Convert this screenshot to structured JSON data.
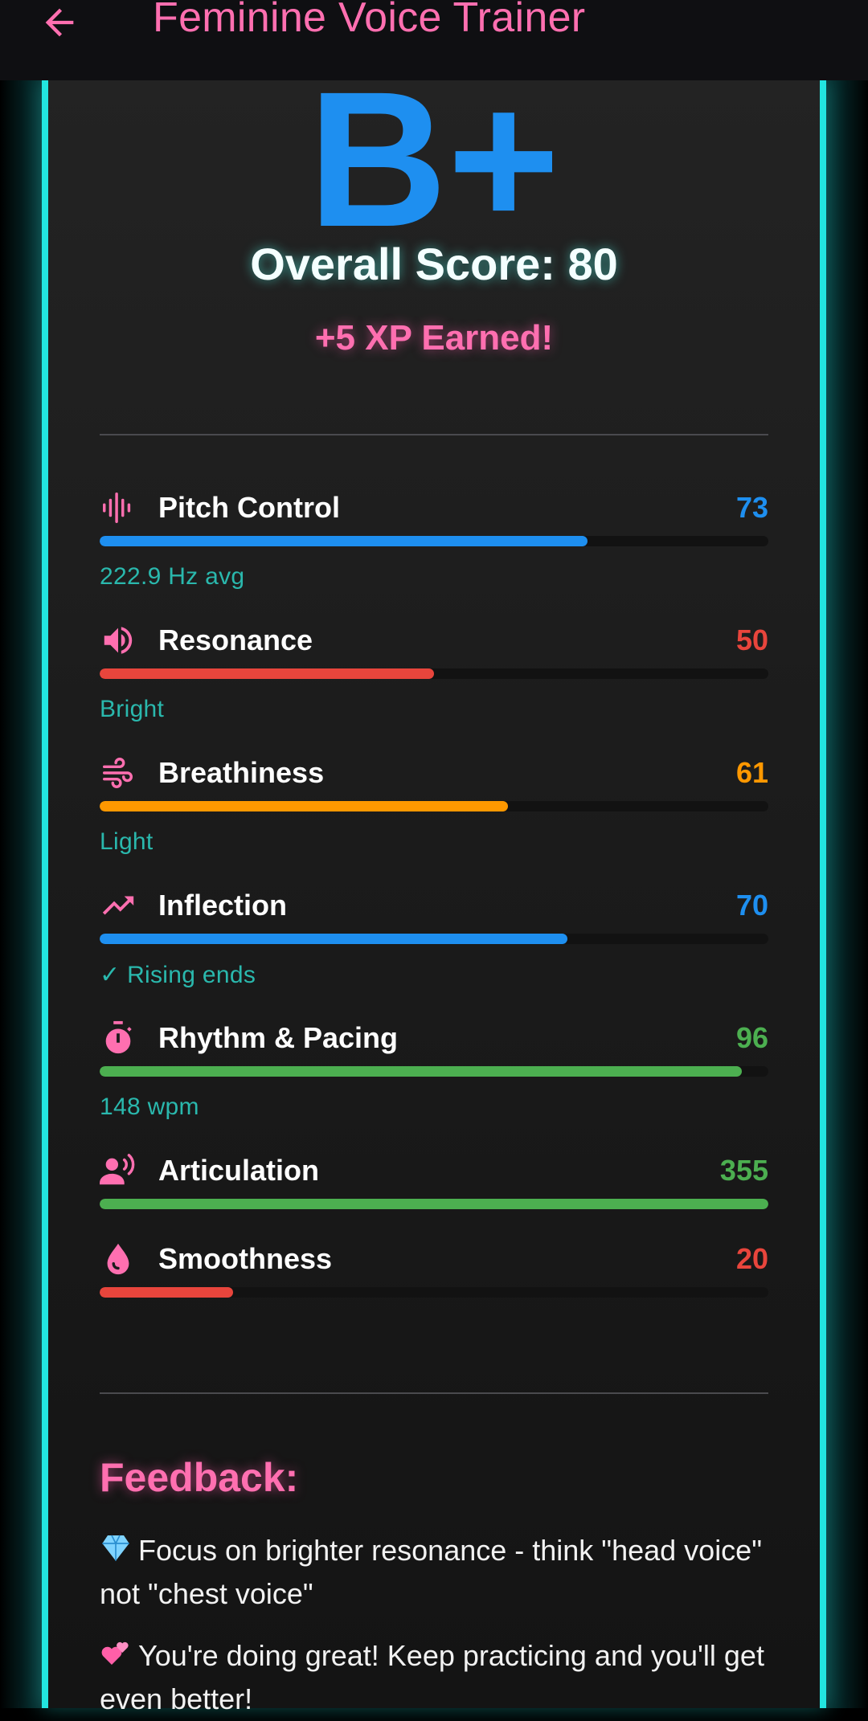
{
  "appbar": {
    "title": "Feminine Voice Trainer"
  },
  "result": {
    "grade": "B+",
    "overall_score": "Overall Score: 80",
    "xp": "+5 XP Earned!"
  },
  "colors": {
    "accent_pink": "#ff6fb0",
    "accent_cyan": "#22e5e0",
    "blue": "#1e8ff0",
    "red": "#e8453c",
    "orange": "#ff9800",
    "green": "#4caf50",
    "detail_teal": "#2ab8ad"
  },
  "metrics": [
    {
      "name": "Pitch Control",
      "value": "73",
      "fill_fraction": 0.73,
      "color": "#1e8ff0",
      "detail": "222.9 Hz avg",
      "icon": "waveform-icon"
    },
    {
      "name": "Resonance",
      "value": "50",
      "fill_fraction": 0.5,
      "color": "#e8453c",
      "detail": "Bright",
      "icon": "speaker-icon"
    },
    {
      "name": "Breathiness",
      "value": "61",
      "fill_fraction": 0.61,
      "color": "#ff9800",
      "detail": "Light",
      "icon": "wind-icon"
    },
    {
      "name": "Inflection",
      "value": "70",
      "fill_fraction": 0.7,
      "color": "#1e8ff0",
      "detail": "✓ Rising ends",
      "icon": "trending-up-icon"
    },
    {
      "name": "Rhythm & Pacing",
      "value": "96",
      "fill_fraction": 0.96,
      "color": "#4caf50",
      "detail": "148 wpm",
      "icon": "timer-icon"
    },
    {
      "name": "Articulation",
      "value": "355",
      "fill_fraction": 1.0,
      "color": "#4caf50",
      "detail": "",
      "icon": "speaking-person-icon"
    },
    {
      "name": "Smoothness",
      "value": "20",
      "fill_fraction": 0.2,
      "color": "#e8453c",
      "detail": "",
      "icon": "drop-icon"
    }
  ],
  "feedback": {
    "title": "Feedback:",
    "items": [
      {
        "icon": "gem-emoji",
        "text": "Focus on brighter resonance - think \"head voice\" not \"chest voice\""
      },
      {
        "icon": "two-hearts-emoji",
        "text": "You're doing great! Keep practicing and you'll get even better!"
      }
    ]
  }
}
